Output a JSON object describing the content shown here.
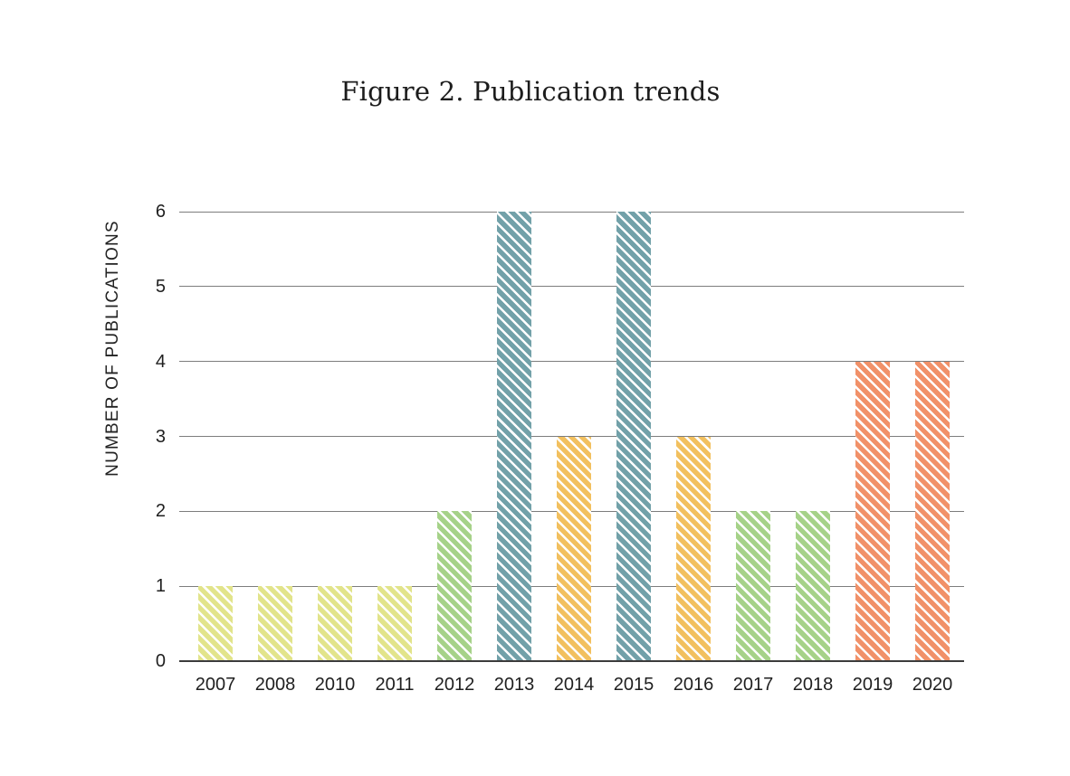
{
  "chart_data": {
    "type": "bar",
    "title": "Figure 2. Publication trends",
    "xlabel": "",
    "ylabel": "NUMBER OF PUBLICATIONS",
    "categories": [
      "2007",
      "2008",
      "2010",
      "2011",
      "2012",
      "2013",
      "2014",
      "2015",
      "2016",
      "2017",
      "2018",
      "2019",
      "2020"
    ],
    "values": [
      1,
      1,
      1,
      1,
      2,
      6,
      3,
      6,
      3,
      2,
      2,
      4,
      4
    ],
    "bar_colors": [
      "#e2e48b",
      "#e2e48b",
      "#e2e48b",
      "#e2e48b",
      "#a6d289",
      "#72a1a9",
      "#f2c05f",
      "#72a1a9",
      "#f2c05f",
      "#a6d289",
      "#a6d289",
      "#f19169",
      "#f19169"
    ],
    "hatch_style": "white-diagonal-stripes",
    "hatch_stripe_color": "#ffffff",
    "ylim": [
      0,
      6
    ],
    "yticks": [
      0,
      1,
      2,
      3,
      4,
      5,
      6
    ],
    "grid": "horizontal",
    "gridline_color": "#7d7d7d",
    "baseline_color": "#3c3c3c",
    "legend": "none",
    "background_color": "#ffffff"
  }
}
